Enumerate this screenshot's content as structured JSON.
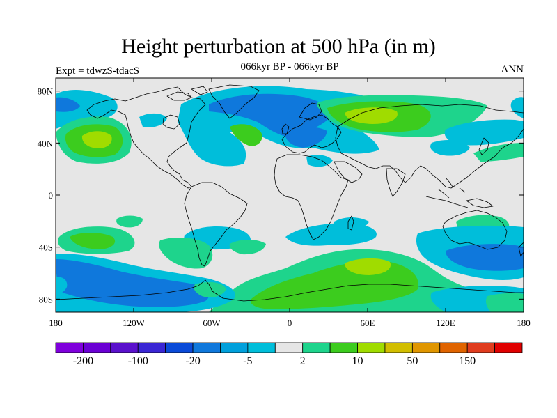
{
  "title": "Height perturbation at 500 hPa (in m)",
  "subtitle": "066kyr BP - 066kyr BP",
  "experiment": "Expt = tdwzS-tdacS",
  "season": "ANN",
  "background_color": "#e6e6e6",
  "map": {
    "projection": "cylindrical equidistant",
    "lon_range": [
      -180,
      180
    ],
    "lat_range": [
      -90,
      90
    ],
    "x_ticks": [
      {
        "value": -180,
        "label": "180"
      },
      {
        "value": -120,
        "label": "120W"
      },
      {
        "value": -60,
        "label": "60W"
      },
      {
        "value": 0,
        "label": "0"
      },
      {
        "value": 60,
        "label": "60E"
      },
      {
        "value": 120,
        "label": "120E"
      },
      {
        "value": 180,
        "label": "180"
      }
    ],
    "y_ticks": [
      {
        "value": 80,
        "label": "80N"
      },
      {
        "value": 40,
        "label": "40N"
      },
      {
        "value": 0,
        "label": "0"
      },
      {
        "value": -40,
        "label": "40S"
      },
      {
        "value": -80,
        "label": "80S"
      }
    ]
  },
  "colorbar": {
    "colors": [
      "#7f00dc",
      "#6a00d4",
      "#5a10cc",
      "#3a26d4",
      "#0a4ad8",
      "#0f78dc",
      "#00a0dc",
      "#00beda",
      "#e6e6e6",
      "#1ed48c",
      "#3ccc1e",
      "#a0dc00",
      "#d2be00",
      "#e09600",
      "#e06400",
      "#e03c1e",
      "#e00000"
    ],
    "labels": [
      {
        "after_box": 1,
        "text": "-200"
      },
      {
        "after_box": 3,
        "text": "-100"
      },
      {
        "after_box": 5,
        "text": "-20"
      },
      {
        "after_box": 7,
        "text": "-5"
      },
      {
        "after_box": 9,
        "text": "2"
      },
      {
        "after_box": 11,
        "text": "10"
      },
      {
        "after_box": 13,
        "text": "50"
      },
      {
        "after_box": 15,
        "text": "150"
      }
    ]
  },
  "anomaly_regions": [
    {
      "level": "-5",
      "color": "#00beda",
      "lon": -165,
      "lat": 78
    },
    {
      "level": "-20",
      "color": "#0f78dc",
      "lon": -40,
      "lat": 75
    },
    {
      "level": "-5",
      "color": "#00beda",
      "lon": -60,
      "lat": 38
    },
    {
      "level": "-20",
      "color": "#0f78dc",
      "lon": 30,
      "lat": 55
    },
    {
      "level": "10",
      "color": "#3ccc1e",
      "lon": 70,
      "lat": 63
    },
    {
      "level": "50",
      "color": "#a0dc00",
      "lon": 60,
      "lat": 61
    },
    {
      "level": "10",
      "color": "#3ccc1e",
      "lon": -145,
      "lat": 43
    },
    {
      "level": "50",
      "color": "#a0dc00",
      "lon": -146,
      "lat": 43
    },
    {
      "level": "10",
      "color": "#3ccc1e",
      "lon": -30,
      "lat": 48
    },
    {
      "level": "2",
      "color": "#1ed48c",
      "lon": 140,
      "lat": 42
    },
    {
      "level": "-5",
      "color": "#00beda",
      "lon": 160,
      "lat": 50
    },
    {
      "level": "10",
      "color": "#3ccc1e",
      "lon": -150,
      "lat": -35
    },
    {
      "level": "-5",
      "color": "#00beda",
      "lon": -75,
      "lat": -32
    },
    {
      "level": "2",
      "color": "#1ed48c",
      "lon": -40,
      "lat": -38
    },
    {
      "level": "-5",
      "color": "#00beda",
      "lon": 25,
      "lat": -35
    },
    {
      "level": "10",
      "color": "#3ccc1e",
      "lon": 60,
      "lat": -58
    },
    {
      "level": "50",
      "color": "#a0dc00",
      "lon": 60,
      "lat": -54
    },
    {
      "level": "-20",
      "color": "#0f78dc",
      "lon": 150,
      "lat": -48
    },
    {
      "level": "-5",
      "color": "#00beda",
      "lon": -130,
      "lat": -65
    },
    {
      "level": "2",
      "color": "#1ed48c",
      "lon": 155,
      "lat": -80
    }
  ]
}
